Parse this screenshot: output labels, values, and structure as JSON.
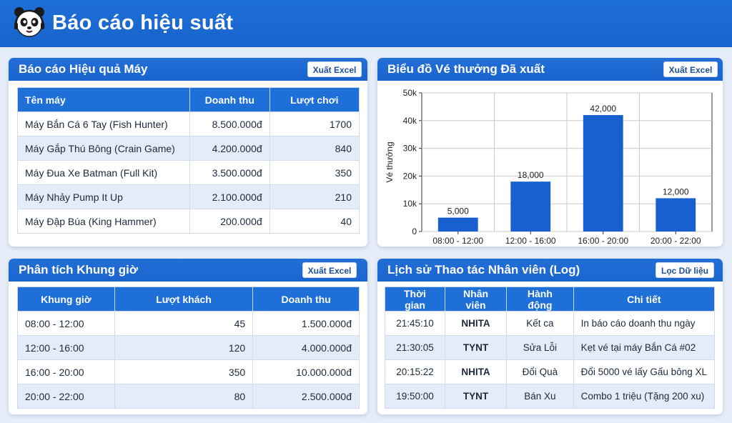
{
  "header": {
    "title": "Báo cáo hiệu suất"
  },
  "machine_report": {
    "title": "Báo cáo Hiệu quả Máy",
    "export_label": "Xuất Excel",
    "columns": [
      "Tên máy",
      "Doanh thu",
      "Lượt chơi"
    ],
    "rows": [
      [
        "Máy Bắn Cá 6 Tay (Fish Hunter)",
        "8.500.000đ",
        "1700"
      ],
      [
        "Máy Gắp Thú Bông (Crain Game)",
        "4.200.000đ",
        "840"
      ],
      [
        "Máy Đua Xe Batman (Full Kit)",
        "3.500.000đ",
        "350"
      ],
      [
        "Máy Nhảy Pump It Up",
        "2.100.000đ",
        "210"
      ],
      [
        "Máy Đập Búa (King Hammer)",
        "200.000đ",
        "40"
      ]
    ]
  },
  "ticket_chart": {
    "title": "Biểu đồ Vé thưởng Đã xuất",
    "export_label": "Xuất Excel"
  },
  "chart_data": {
    "type": "bar",
    "categories": [
      "08:00 - 12:00",
      "12:00 - 16:00",
      "16:00 - 20:00",
      "20:00 - 22:00"
    ],
    "values": [
      5000,
      18000,
      42000,
      12000
    ],
    "value_labels": [
      "5,000",
      "18,000",
      "42,000",
      "12,000"
    ],
    "ylabel": "Vé thưởng",
    "ylim": [
      0,
      50000
    ],
    "yticks": [
      0,
      10000,
      20000,
      30000,
      40000,
      50000
    ],
    "ytick_labels": [
      "0",
      "10k",
      "20k",
      "30k",
      "40k",
      "50k"
    ],
    "grid": true,
    "bar_color": "#1a5fd0"
  },
  "timeslot_analysis": {
    "title": "Phân tích Khung giờ",
    "export_label": "Xuất Excel",
    "columns": [
      "Khung giờ",
      "Lượt khách",
      "Doanh thu"
    ],
    "rows": [
      [
        "08:00 - 12:00",
        "45",
        "1.500.000đ"
      ],
      [
        "12:00 - 16:00",
        "120",
        "4.000.000đ"
      ],
      [
        "16:00 - 20:00",
        "350",
        "10.000.000đ"
      ],
      [
        "20:00 - 22:00",
        "80",
        "2.500.000đ"
      ]
    ]
  },
  "staff_log": {
    "title": "Lịch sử Thao tác Nhân viên (Log)",
    "filter_label": "Lọc Dữ liệu",
    "columns": [
      "Thời gian",
      "Nhân viên",
      "Hành động",
      "Chi tiết"
    ],
    "rows": [
      [
        "21:45:10",
        "NHITA",
        "Kết ca",
        "In báo cáo doanh thu ngày"
      ],
      [
        "21:30:05",
        "TYNT",
        "Sửa Lỗi",
        "Kẹt vé tại máy Bắn Cá #02"
      ],
      [
        "20:15:22",
        "NHITA",
        "Đổi Quà",
        "Đổi 5000 vé lấy Gấu bông XL"
      ],
      [
        "19:50:00",
        "TYNT",
        "Bán Xu",
        "Combo 1 triệu (Tặng 200 xu)"
      ]
    ]
  },
  "colors": {
    "primary": "#1f6fd8",
    "background": "#e6edf8",
    "row_alt": "#e4ecf9"
  }
}
